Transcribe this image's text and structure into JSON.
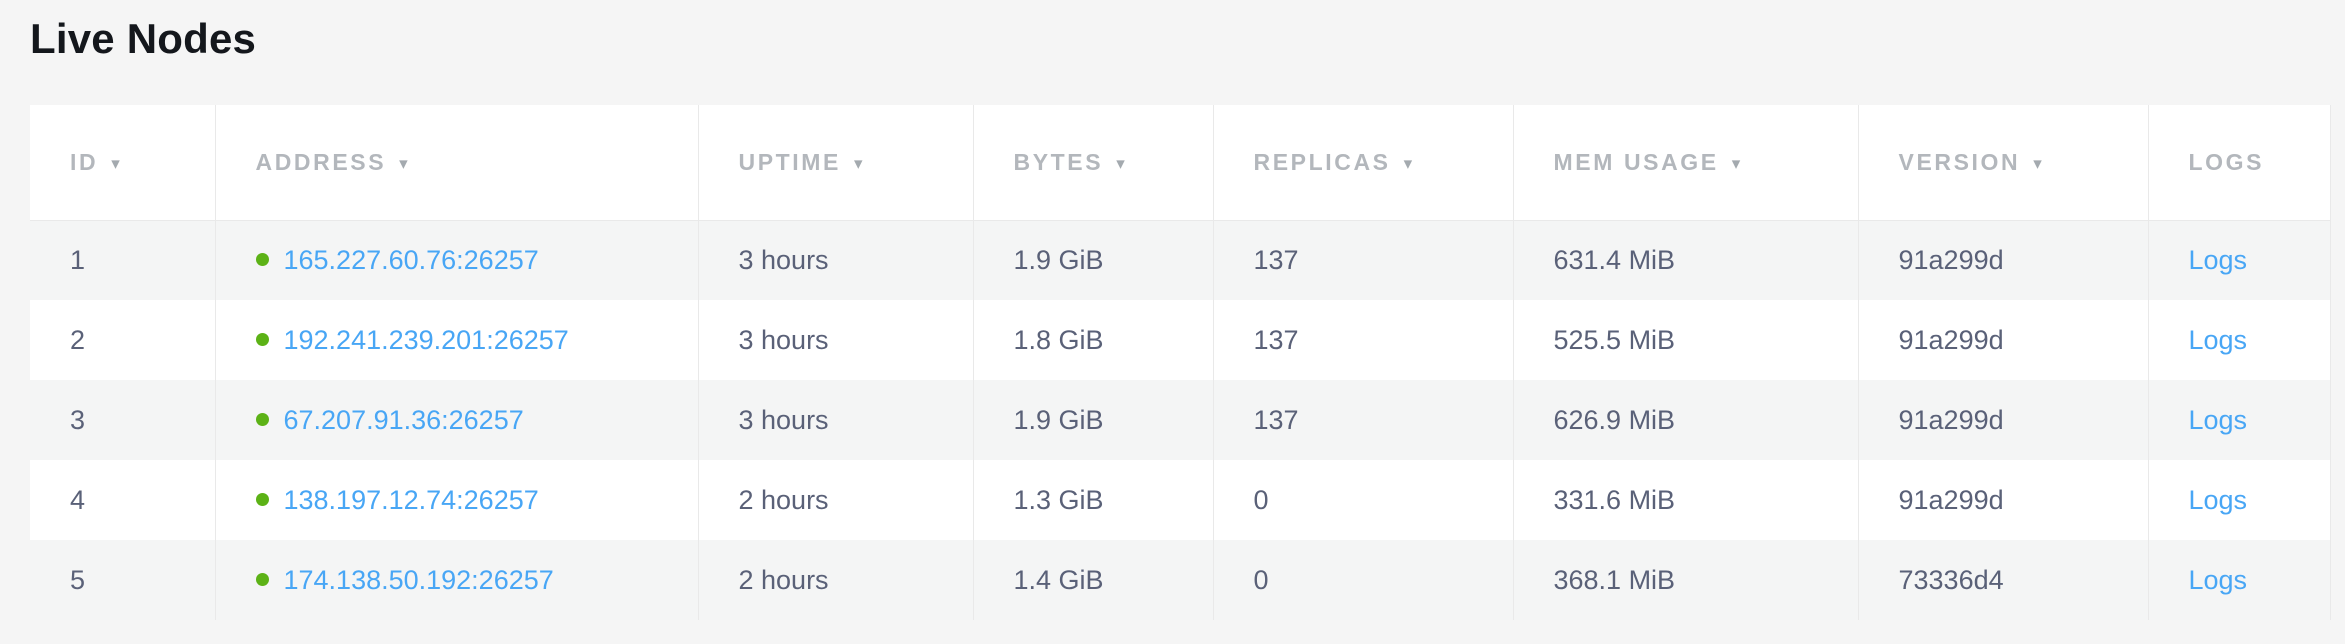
{
  "page": {
    "title": "Live Nodes"
  },
  "colors": {
    "page_background": "#f5f5f5",
    "link_blue": "#48a6f5",
    "status_green": "#5cb216",
    "header_text": "#b3b7bc",
    "body_text": "#5a6178",
    "row_stripe": "#f4f5f5",
    "border": "#e9e9e9"
  },
  "icons": {
    "sort_indicator": "▾",
    "node_status": "green-dot"
  },
  "table": {
    "columns": [
      {
        "key": "id",
        "label": "ID",
        "sortable": true
      },
      {
        "key": "address",
        "label": "ADDRESS",
        "sortable": true
      },
      {
        "key": "uptime",
        "label": "UPTIME",
        "sortable": true
      },
      {
        "key": "bytes",
        "label": "BYTES",
        "sortable": true
      },
      {
        "key": "replicas",
        "label": "REPLICAS",
        "sortable": true
      },
      {
        "key": "mem_usage",
        "label": "MEM USAGE",
        "sortable": true
      },
      {
        "key": "version",
        "label": "VERSION",
        "sortable": true
      },
      {
        "key": "logs",
        "label": "LOGS",
        "sortable": false
      }
    ],
    "rows": [
      {
        "id": "1",
        "address": "165.227.60.76:26257",
        "uptime": "3 hours",
        "bytes": "1.9 GiB",
        "replicas": "137",
        "mem_usage": "631.4 MiB",
        "version": "91a299d",
        "logs_label": "Logs"
      },
      {
        "id": "2",
        "address": "192.241.239.201:26257",
        "uptime": "3 hours",
        "bytes": "1.8 GiB",
        "replicas": "137",
        "mem_usage": "525.5 MiB",
        "version": "91a299d",
        "logs_label": "Logs"
      },
      {
        "id": "3",
        "address": "67.207.91.36:26257",
        "uptime": "3 hours",
        "bytes": "1.9 GiB",
        "replicas": "137",
        "mem_usage": "626.9 MiB",
        "version": "91a299d",
        "logs_label": "Logs"
      },
      {
        "id": "4",
        "address": "138.197.12.74:26257",
        "uptime": "2 hours",
        "bytes": "1.3 GiB",
        "replicas": "0",
        "mem_usage": "331.6 MiB",
        "version": "91a299d",
        "logs_label": "Logs"
      },
      {
        "id": "5",
        "address": "174.138.50.192:26257",
        "uptime": "2 hours",
        "bytes": "1.4 GiB",
        "replicas": "0",
        "mem_usage": "368.1 MiB",
        "version": "73336d4",
        "logs_label": "Logs"
      }
    ]
  }
}
